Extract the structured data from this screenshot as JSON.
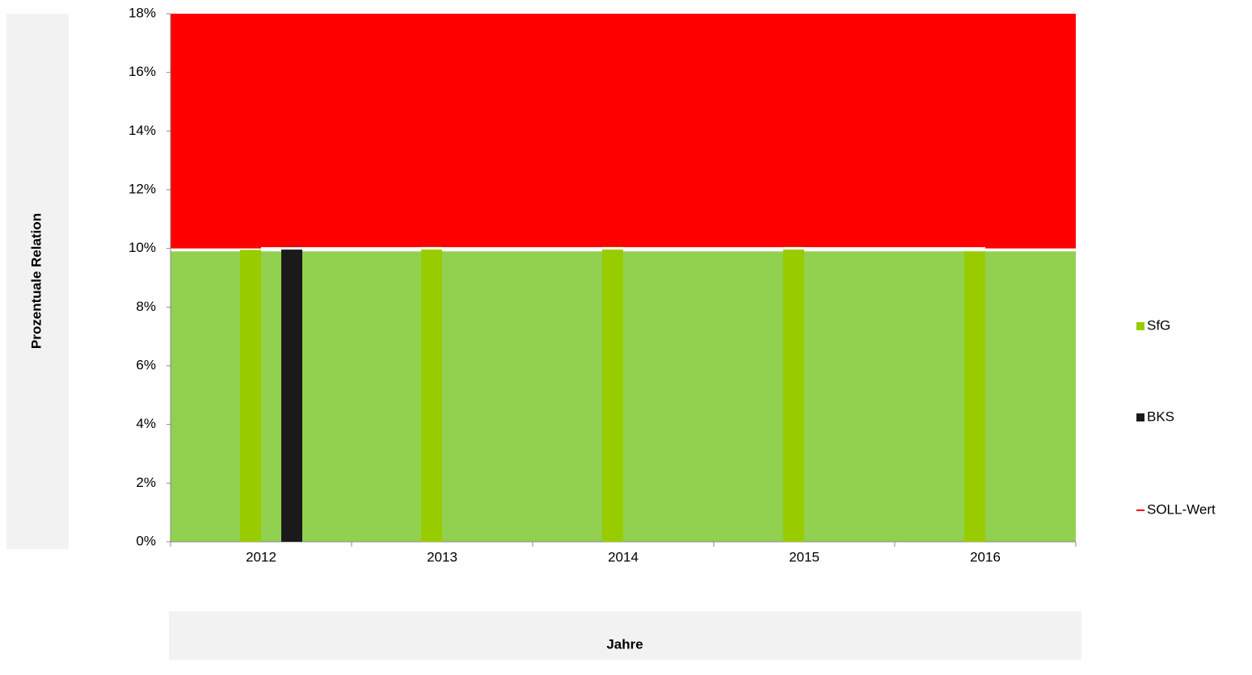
{
  "chart_data": {
    "type": "bar",
    "x_label": "Jahre",
    "y_label": "Prozentuale Relation",
    "categories": [
      "2012",
      "2013",
      "2014",
      "2015",
      "2016"
    ],
    "series": [
      {
        "name": "SfG",
        "color": "#99cc00",
        "values": [
          9.95,
          10.05,
          10.05,
          10.05,
          9.9
        ]
      },
      {
        "name": "BKS",
        "color": "#1a1a1a",
        "values": [
          10.05,
          null,
          null,
          null,
          null
        ]
      },
      {
        "name": "SOLL-Wert",
        "color": "#ff0000",
        "type": "line",
        "values": [
          10,
          10,
          10,
          10,
          10
        ]
      }
    ],
    "bands": [
      {
        "from": 0,
        "to": 9.9,
        "color": "#92d050"
      },
      {
        "from": 10,
        "to": 18,
        "color": "#ff0000"
      }
    ],
    "ylim": [
      0,
      18
    ],
    "yticks": [
      {
        "value": 0,
        "label": "0%"
      },
      {
        "value": 2,
        "label": "2%"
      },
      {
        "value": 4,
        "label": "4%"
      },
      {
        "value": 6,
        "label": "6%"
      },
      {
        "value": 8,
        "label": "8%"
      },
      {
        "value": 10,
        "label": "10%"
      },
      {
        "value": 12,
        "label": "12%"
      },
      {
        "value": 14,
        "label": "14%"
      },
      {
        "value": 16,
        "label": "16%"
      },
      {
        "value": 18,
        "label": "18%"
      }
    ],
    "legend": "right"
  }
}
